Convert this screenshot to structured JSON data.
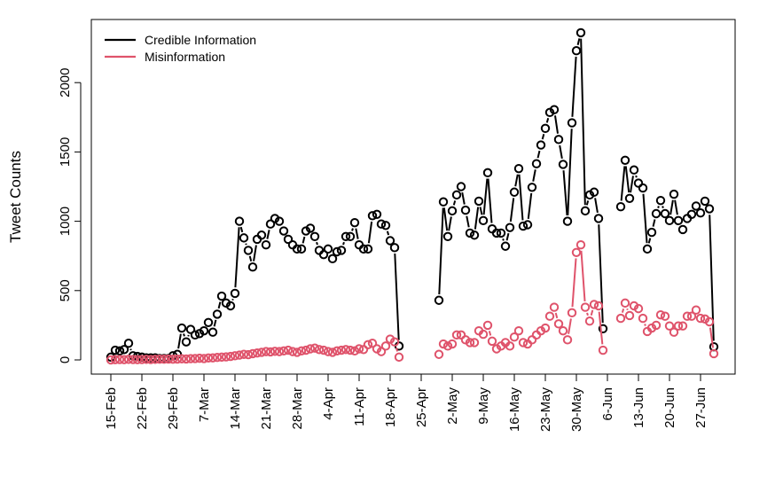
{
  "chart_data": {
    "type": "line",
    "title": "",
    "xlabel": "",
    "ylabel": "Tweet Counts",
    "ylim": [
      -60,
      2500
    ],
    "yticks": [
      0,
      500,
      1000,
      1500,
      2000
    ],
    "start_date": "15-Feb",
    "xtick_labels": [
      "15-Feb",
      "22-Feb",
      "29-Feb",
      "7-Mar",
      "14-Mar",
      "21-Mar",
      "28-Mar",
      "4-Apr",
      "11-Apr",
      "18-Apr",
      "25-Apr",
      "2-May",
      "9-May",
      "16-May",
      "23-May",
      "30-May",
      "6-Jun",
      "13-Jun",
      "20-Jun",
      "27-Jun"
    ],
    "legend": {
      "placement": "top-left",
      "entries": [
        "Credible Information",
        "Misinformation"
      ]
    },
    "series": [
      {
        "name": "Credible Information",
        "color": "#000000",
        "segments": [
          {
            "start_day": 0,
            "values": [
              20,
              70,
              65,
              75,
              120,
              30,
              25,
              20,
              15,
              15,
              15,
              10,
              10,
              10,
              30,
              40,
              230,
              130,
              220,
              180,
              190,
              210,
              270,
              200,
              330,
              460,
              410,
              390,
              480,
              1000,
              880,
              790,
              670,
              870,
              900,
              830,
              980,
              1020,
              1000,
              930,
              870,
              830,
              800,
              800,
              930,
              950,
              890,
              790,
              760,
              800,
              730,
              780,
              790,
              890,
              890,
              990,
              830,
              800,
              800,
              1040,
              1050,
              980,
              970,
              860,
              810,
              100
            ]
          },
          {
            "start_day": 74,
            "values": [
              430,
              1140,
              890,
              1075,
              1190,
              1250,
              1080,
              915,
              900,
              1145,
              1005,
              1350,
              945,
              915,
              915,
              820,
              955,
              1210,
              1380,
              965,
              975,
              1245,
              1415,
              1550,
              1670,
              1785,
              1805,
              1590,
              1410,
              1000,
              1710,
              2230,
              2360,
              1075,
              1190,
              1210,
              1020,
              225
            ]
          },
          {
            "start_day": 115,
            "values": [
              1105,
              1440,
              1165,
              1370,
              1275,
              1240,
              800,
              920,
              1055,
              1150,
              1055,
              1005,
              1195,
              1005,
              940,
              1020,
              1050,
              1110,
              1060,
              1145,
              1090,
              95
            ]
          }
        ]
      },
      {
        "name": "Misinformation",
        "color": "#DF536B",
        "segments": [
          {
            "start_day": 0,
            "values": [
              0,
              2,
              3,
              2,
              4,
              3,
              2,
              3,
              4,
              3,
              4,
              5,
              5,
              6,
              5,
              6,
              8,
              7,
              9,
              10,
              12,
              10,
              14,
              15,
              18,
              20,
              22,
              25,
              30,
              35,
              40,
              38,
              45,
              50,
              55,
              60,
              58,
              62,
              60,
              65,
              70,
              60,
              55,
              65,
              70,
              80,
              85,
              75,
              70,
              60,
              55,
              65,
              70,
              75,
              70,
              65,
              80,
              75,
              110,
              120,
              80,
              60,
              100,
              150,
              130,
              20
            ]
          },
          {
            "start_day": 74,
            "values": [
              40,
              115,
              100,
              115,
              180,
              180,
              145,
              125,
              125,
              210,
              185,
              250,
              135,
              80,
              100,
              125,
              100,
              165,
              210,
              125,
              115,
              145,
              180,
              210,
              230,
              315,
              380,
              260,
              210,
              145,
              340,
              775,
              830,
              380,
              280,
              400,
              390,
              70
            ]
          },
          {
            "start_day": 115,
            "values": [
              300,
              410,
              320,
              390,
              370,
              300,
              205,
              230,
              250,
              325,
              315,
              245,
              200,
              245,
              245,
              315,
              315,
              360,
              300,
              295,
              275,
              45
            ]
          }
        ]
      }
    ]
  }
}
